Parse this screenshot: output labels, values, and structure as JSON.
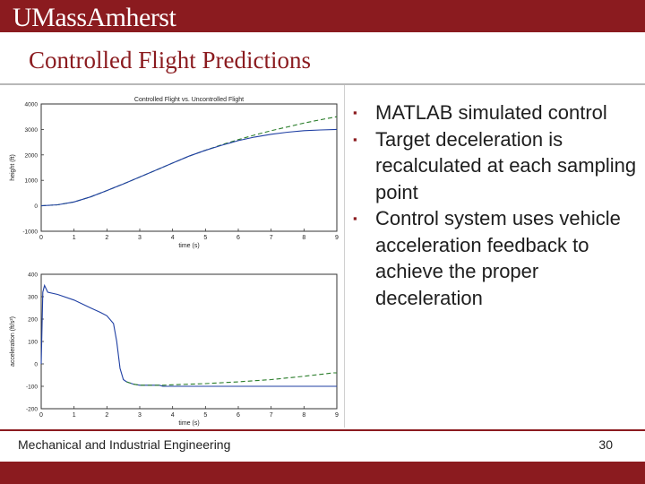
{
  "header": {
    "logo_text": "UMassAmherst"
  },
  "slide": {
    "title": "Controlled Flight Predictions",
    "bullets": [
      "MATLAB simulated control",
      "Target deceleration is recalculated at each sampling point",
      "Control system uses vehicle acceleration feedback to achieve the proper deceleration"
    ],
    "bullet_marker": "▪"
  },
  "footer": {
    "text": "Mechanical and Industrial Engineering",
    "page_number": "30"
  },
  "colors": {
    "brand": "#8b1b1f",
    "controlled": "#1f3fa3",
    "uncontrolled": "#2a7d2a"
  },
  "chart_data": [
    {
      "type": "line",
      "title": "Controlled Flight vs. Uncontrolled Flight",
      "xlabel": "time (s)",
      "ylabel": "height (ft)",
      "xlim": [
        0,
        9
      ],
      "ylim": [
        -1000,
        4000
      ],
      "xticks": [
        0,
        1,
        2,
        3,
        4,
        5,
        6,
        7,
        8,
        9
      ],
      "yticks": [
        4000,
        3000,
        2000,
        1000,
        0,
        -1000
      ],
      "series": [
        {
          "name": "uncontrolled",
          "x": [
            0,
            0.5,
            1,
            1.5,
            2,
            2.5,
            3,
            3.5,
            4,
            4.5,
            5,
            5.5,
            6,
            6.5,
            7,
            7.5,
            8,
            8.5,
            9
          ],
          "y": [
            0,
            40,
            150,
            350,
            600,
            860,
            1130,
            1400,
            1680,
            1950,
            2180,
            2400,
            2600,
            2780,
            2950,
            3100,
            3250,
            3380,
            3500
          ],
          "style": "dashed"
        },
        {
          "name": "controlled",
          "x": [
            0,
            0.5,
            1,
            1.5,
            2,
            2.5,
            3,
            3.5,
            4,
            4.5,
            5,
            5.5,
            6,
            6.5,
            7,
            7.5,
            8,
            8.5,
            9
          ],
          "y": [
            0,
            40,
            150,
            350,
            600,
            860,
            1130,
            1400,
            1680,
            1950,
            2180,
            2380,
            2560,
            2700,
            2810,
            2890,
            2950,
            2980,
            3000
          ],
          "style": "solid"
        }
      ]
    },
    {
      "type": "line",
      "title": "",
      "xlabel": "time (s)",
      "ylabel": "acceleration (ft/s²)",
      "xlim": [
        0,
        9
      ],
      "ylim": [
        -200,
        400
      ],
      "xticks": [
        0,
        1,
        2,
        3,
        4,
        5,
        6,
        7,
        8,
        9
      ],
      "yticks": [
        400,
        300,
        200,
        100,
        0,
        -100,
        -200
      ],
      "series": [
        {
          "name": "controlled",
          "x": [
            0,
            0.05,
            0.1,
            0.2,
            0.5,
            1,
            1.5,
            1.8,
            2,
            2.2,
            2.3,
            2.4,
            2.5,
            2.6,
            2.8,
            3,
            3.3,
            3.6,
            3.7,
            4,
            5,
            6,
            7,
            8,
            9
          ],
          "y": [
            0,
            320,
            350,
            320,
            310,
            285,
            250,
            230,
            215,
            180,
            100,
            -20,
            -70,
            -80,
            -90,
            -95,
            -95,
            -95,
            -100,
            -100,
            -100,
            -100,
            -100,
            -100,
            -100
          ],
          "style": "solid"
        },
        {
          "name": "uncontrolled",
          "x": [
            2.6,
            2.8,
            3,
            3.3,
            3.7,
            4,
            5,
            6,
            7,
            8,
            8.9,
            9
          ],
          "y": [
            -80,
            -90,
            -95,
            -95,
            -95,
            -93,
            -88,
            -80,
            -70,
            -55,
            -40,
            -40
          ],
          "style": "dashed"
        }
      ]
    }
  ]
}
